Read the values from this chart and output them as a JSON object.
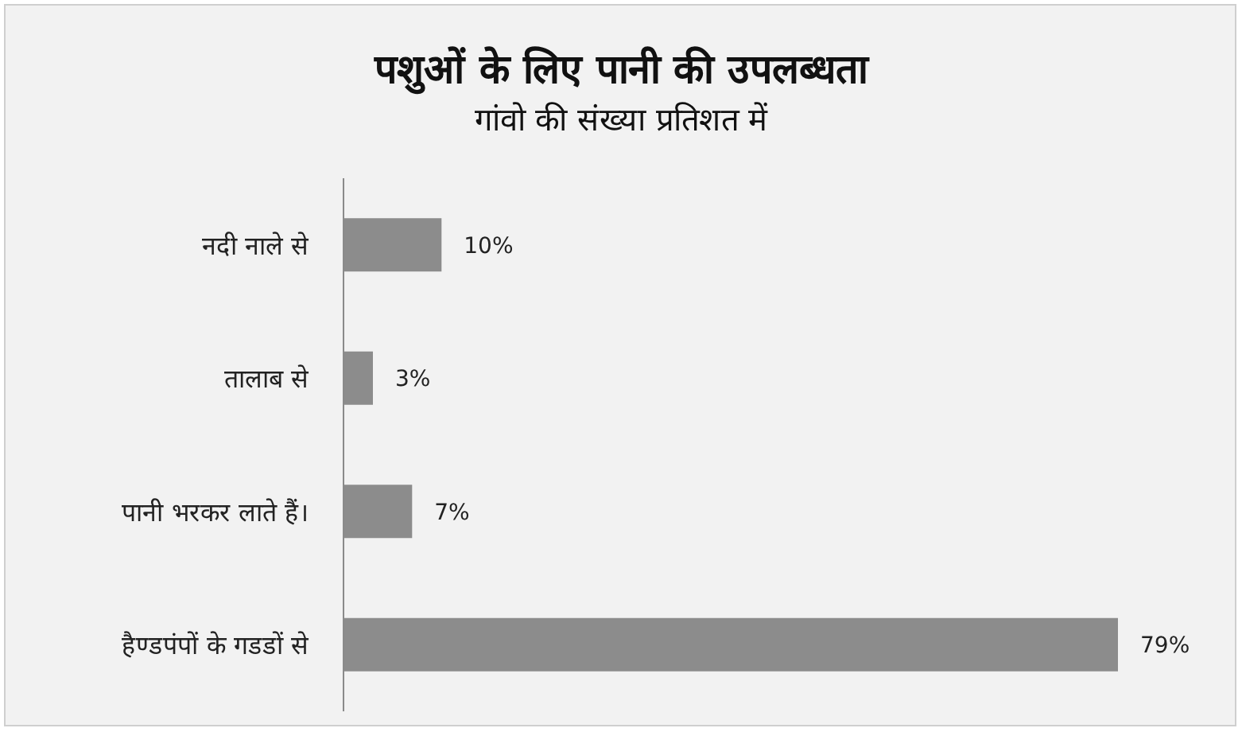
{
  "chart_data": {
    "type": "bar",
    "orientation": "horizontal",
    "title": "पशुओं के लिए पानी की उपलब्धता",
    "subtitle": "गांवो की संख्या प्रतिशत में",
    "categories": [
      "नदी नाले से",
      "तालाब से",
      "पानी भरकर लाते हैं।",
      "हैण्डपंपों के गडडों से"
    ],
    "values": [
      10,
      3,
      7,
      79
    ],
    "value_labels": [
      "10%",
      "3%",
      "7%",
      "79%"
    ],
    "color": "#8c8c8c"
  }
}
